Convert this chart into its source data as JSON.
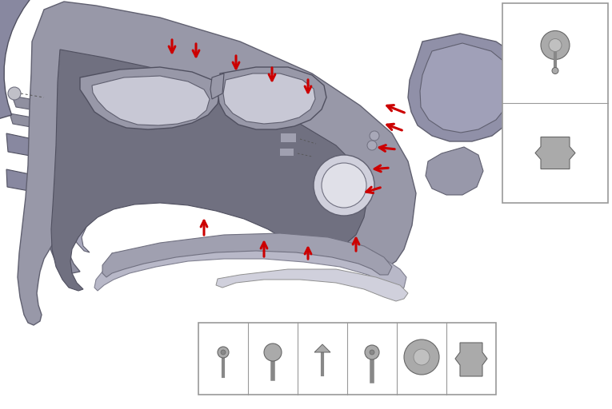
{
  "background_color": "#ffffff",
  "fig_width": 7.65,
  "fig_height": 5.12,
  "dpi": 100,
  "arrow_color": "#cc0000",
  "gray_dark": "#888898",
  "gray_mid": "#9898a8",
  "gray_light": "#b8b8c8",
  "gray_lighter": "#d0d0dc",
  "box_edge": "#999999",
  "line_color": "#555555"
}
